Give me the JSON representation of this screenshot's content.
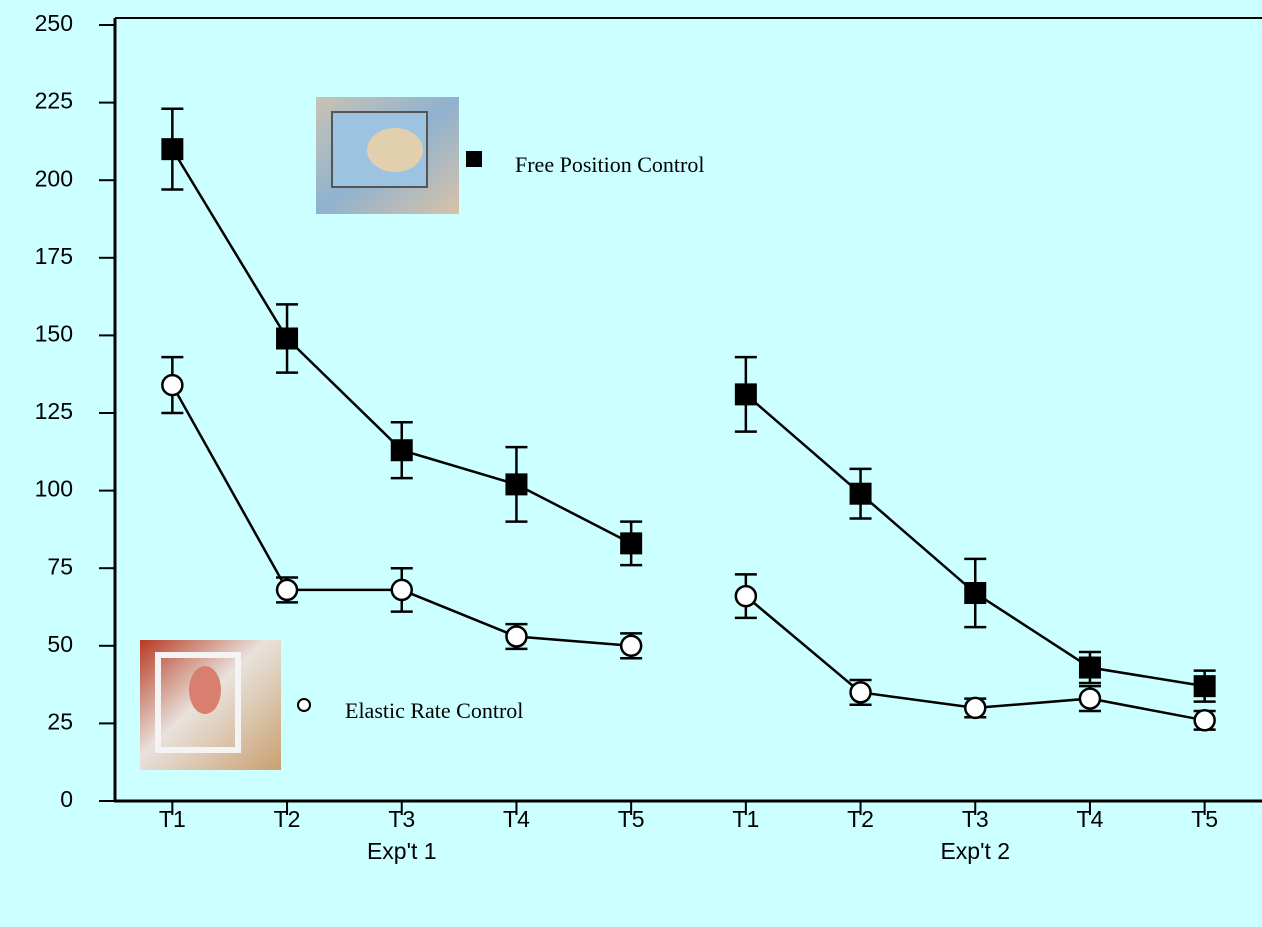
{
  "chart_data": {
    "type": "line",
    "categories": [
      "T1",
      "T2",
      "T3",
      "T4",
      "T5",
      "T1",
      "T2",
      "T3",
      "T4",
      "T5"
    ],
    "groups": [
      "Exp't 1",
      "Exp't 2"
    ],
    "series": [
      {
        "name": "Free Position Control",
        "marker": "square",
        "color": "#000000",
        "values": [
          210,
          149,
          113,
          102,
          83,
          131,
          99,
          67,
          43,
          37
        ],
        "errors": [
          13,
          11,
          9,
          12,
          7,
          12,
          8,
          11,
          5,
          5
        ]
      },
      {
        "name": "Elastic Rate Control",
        "marker": "circle",
        "color": "#000000",
        "values": [
          134,
          68,
          68,
          53,
          50,
          66,
          35,
          30,
          33,
          26
        ],
        "errors": [
          9,
          4,
          7,
          4,
          4,
          7,
          4,
          3,
          4,
          3
        ]
      }
    ],
    "ylim": [
      0,
      250
    ],
    "yticks": [
      0,
      25,
      50,
      75,
      100,
      125,
      150,
      175,
      200,
      225,
      250
    ],
    "grid": false
  }
}
